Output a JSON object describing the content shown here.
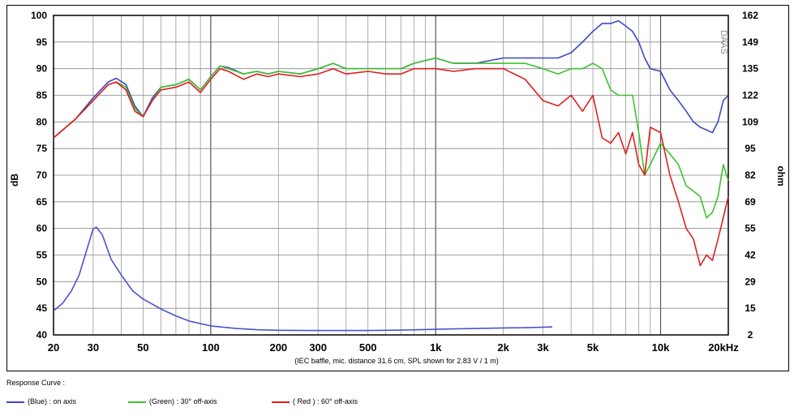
{
  "chart_data": {
    "type": "line",
    "x_scale": "log",
    "xlim": [
      20,
      20000
    ],
    "ylim": [
      40,
      100
    ],
    "y2lim": [
      2,
      162
    ],
    "ylabel": "dB",
    "y2label": "ohm",
    "x_ticks": [
      {
        "v": 20,
        "label": "20"
      },
      {
        "v": 30,
        "label": "30"
      },
      {
        "v": 50,
        "label": "50"
      },
      {
        "v": 100,
        "label": "100"
      },
      {
        "v": 200,
        "label": "200"
      },
      {
        "v": 300,
        "label": "300"
      },
      {
        "v": 500,
        "label": "500"
      },
      {
        "v": 1000,
        "label": "1k"
      },
      {
        "v": 2000,
        "label": "2k"
      },
      {
        "v": 3000,
        "label": "3k"
      },
      {
        "v": 5000,
        "label": "5k"
      },
      {
        "v": 10000,
        "label": "10k"
      },
      {
        "v": 20000,
        "label": "20kHz"
      }
    ],
    "y_ticks": [
      "100",
      "95",
      "90",
      "85",
      "80",
      "75",
      "70",
      "65",
      "60",
      "55",
      "50",
      "45",
      "40"
    ],
    "y2_ticks": [
      "162",
      "149",
      "135",
      "122",
      "109",
      "95",
      "82",
      "69",
      "55",
      "42",
      "29",
      "15",
      "2"
    ],
    "grid": true,
    "footnote": "(IEC baffle, mic. distance 31.6 cm, SPL shown for 2.83 V / 1 m)",
    "watermark": "DAAS",
    "series": [
      {
        "name": "(Blue) : on axis",
        "color": "#3b48c4",
        "x": [
          20,
          25,
          30,
          35,
          38,
          42,
          46,
          50,
          55,
          60,
          70,
          80,
          90,
          100,
          110,
          120,
          140,
          160,
          180,
          200,
          250,
          300,
          350,
          400,
          500,
          600,
          700,
          800,
          1000,
          1200,
          1500,
          2000,
          2500,
          3000,
          3500,
          4000,
          4500,
          5000,
          5500,
          6000,
          6500,
          7000,
          7500,
          8000,
          8500,
          9000,
          10000,
          11000,
          12000,
          13000,
          14000,
          15000,
          16000,
          17000,
          18000,
          19000,
          20000
        ],
        "y": [
          77,
          80.5,
          84.5,
          87.5,
          88.2,
          87,
          83,
          81,
          84.5,
          86.5,
          87,
          88,
          86,
          88.5,
          90.5,
          90.2,
          89,
          89.5,
          89,
          89.5,
          89,
          90,
          91,
          90,
          90,
          90,
          90,
          91,
          92,
          91,
          91,
          92,
          92,
          92,
          92,
          93,
          95,
          97,
          98.5,
          98.5,
          99,
          98,
          97,
          95,
          92,
          90,
          89.5,
          86,
          84,
          82,
          80,
          79,
          78.5,
          78,
          80,
          84,
          85
        ]
      },
      {
        "name": "(Green) : 30° off-axis",
        "color": "#3ec22f",
        "x": [
          20,
          25,
          30,
          35,
          38,
          42,
          46,
          50,
          55,
          60,
          70,
          80,
          90,
          100,
          110,
          120,
          140,
          160,
          180,
          200,
          250,
          300,
          350,
          400,
          500,
          600,
          700,
          800,
          1000,
          1200,
          1500,
          2000,
          2500,
          3000,
          3500,
          4000,
          4500,
          5000,
          5500,
          6000,
          6500,
          7000,
          7500,
          8000,
          8500,
          9000,
          10000,
          11000,
          12000,
          13000,
          14000,
          15000,
          16000,
          17000,
          18000,
          19000,
          20000
        ],
        "y": [
          77,
          80.5,
          84,
          87,
          87.5,
          86.5,
          82.5,
          81,
          84,
          86.5,
          87,
          88,
          86,
          88.5,
          90.5,
          90,
          89,
          89.5,
          89,
          89.5,
          89,
          90,
          91,
          90,
          90,
          90,
          90,
          91,
          92,
          91,
          91,
          91,
          91,
          90,
          89,
          90,
          90,
          91,
          90,
          86,
          85,
          85,
          85,
          78,
          70,
          72,
          76,
          74,
          72,
          68,
          67,
          66,
          62,
          63,
          66,
          72,
          69
        ]
      },
      {
        "name": "( Red ) : 60° off-axis",
        "color": "#e01f1f",
        "x": [
          20,
          25,
          30,
          35,
          38,
          42,
          46,
          50,
          55,
          60,
          70,
          80,
          90,
          100,
          110,
          120,
          140,
          160,
          180,
          200,
          250,
          300,
          350,
          400,
          500,
          600,
          700,
          800,
          1000,
          1200,
          1500,
          2000,
          2500,
          3000,
          3500,
          4000,
          4500,
          5000,
          5500,
          6000,
          6500,
          7000,
          7500,
          8000,
          8500,
          9000,
          10000,
          11000,
          12000,
          13000,
          14000,
          15000,
          16000,
          17000,
          18000,
          19000,
          20000
        ],
        "y": [
          77,
          80.5,
          84,
          87,
          87.5,
          86,
          82,
          81,
          84,
          86,
          86.5,
          87.5,
          85.5,
          88,
          90,
          89.5,
          88,
          89,
          88.5,
          89,
          88.5,
          89,
          90,
          89,
          89.5,
          89,
          89,
          90,
          90,
          89.5,
          90,
          90,
          88,
          84,
          83,
          85,
          82,
          85,
          77,
          76,
          78,
          74,
          78,
          72,
          70,
          79,
          78,
          70,
          65,
          60,
          58,
          53,
          55,
          54,
          58,
          62,
          66
        ]
      },
      {
        "name": "Impedance",
        "color": "#4a55c8",
        "axis": "right",
        "x": [
          20,
          22,
          24,
          26,
          28,
          30,
          31,
          33,
          36,
          40,
          45,
          50,
          60,
          70,
          80,
          100,
          130,
          160,
          200,
          300,
          500,
          700,
          1000,
          1500,
          2000,
          2500,
          3000,
          3300
        ],
        "y": [
          14,
          18,
          24,
          32,
          44,
          55,
          56,
          52,
          40,
          32,
          24,
          20,
          15,
          11.5,
          9,
          6.5,
          5.2,
          4.6,
          4.3,
          4.2,
          4.2,
          4.4,
          4.8,
          5.2,
          5.5,
          5.6,
          5.8,
          6.0
        ]
      }
    ]
  },
  "legend": {
    "title": "Response Curve :",
    "items": [
      {
        "label": "(Blue)  : on axis",
        "color": "#3b48c4"
      },
      {
        "label": "(Green) : 30° off-axis",
        "color": "#3ec22f"
      },
      {
        "label": "( Red ) : 60° off-axis",
        "color": "#e01f1f"
      }
    ]
  }
}
